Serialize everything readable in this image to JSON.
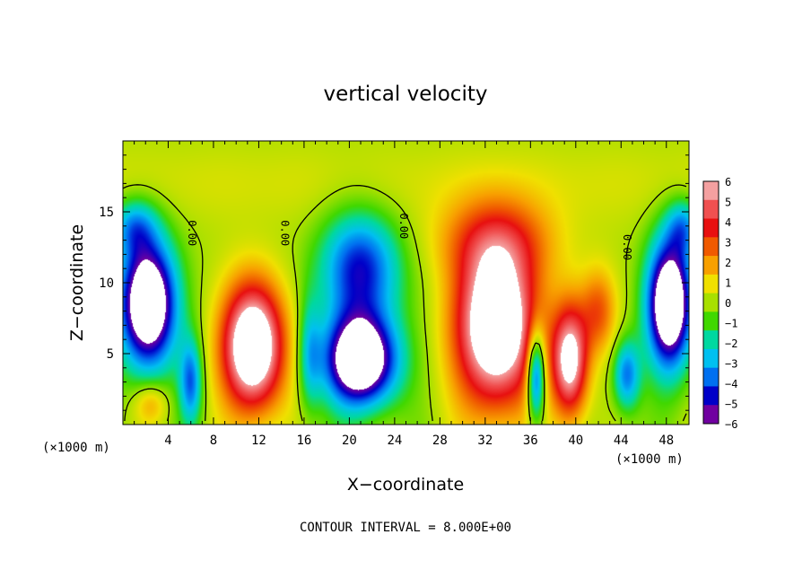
{
  "chart_data": {
    "type": "heatmap",
    "title": "vertical velocity",
    "xlabel": "X−coordinate",
    "ylabel": "Z−coordinate",
    "x_unit": "(×1000 m)",
    "xlim": [
      0,
      50
    ],
    "ylim": [
      0,
      20
    ],
    "xticks": [
      4,
      8,
      12,
      16,
      20,
      24,
      28,
      32,
      36,
      40,
      44,
      48
    ],
    "yticks": [
      5,
      10,
      15
    ],
    "colorbar": {
      "range": [
        -6,
        6
      ],
      "ticks": [
        "6",
        "5",
        "4",
        "3",
        "2",
        "1",
        "0",
        "−1",
        "−2",
        "−3",
        "−4",
        "−5",
        "−6"
      ],
      "colors": [
        "#f4a0a0",
        "#f05050",
        "#e81010",
        "#f05a00",
        "#f8a000",
        "#f0e000",
        "#a8e000",
        "#40d800",
        "#00d8a0",
        "#00c0f0",
        "#0070f0",
        "#0000c8",
        "#7000a0"
      ]
    },
    "zero_contour_label": "0.00",
    "contour_interval_text": "CONTOUR INTERVAL = 8.000E+00",
    "features": [
      {
        "kind": "updraft",
        "x": 11.5,
        "z": 5.5,
        "sx": 2.7,
        "sz": 4.5,
        "w": 9
      },
      {
        "kind": "updraft",
        "x": 33.0,
        "z": 7.0,
        "sx": 3.6,
        "sz": 5.8,
        "w": 9
      },
      {
        "kind": "updraft",
        "x": 39.5,
        "z": 4.5,
        "sx": 1.6,
        "sz": 4.0,
        "w": 7
      },
      {
        "kind": "updraft",
        "x": 42.0,
        "z": 8.0,
        "sx": 1.6,
        "sz": 3.0,
        "w": 3
      },
      {
        "kind": "updraft",
        "x": 33.0,
        "z": 13.0,
        "sx": 5.5,
        "sz": 3.0,
        "w": 2.5
      },
      {
        "kind": "updraft",
        "x": 2.5,
        "z": 1.5,
        "sx": 1.5,
        "sz": 1.5,
        "w": 2
      },
      {
        "kind": "downdraft",
        "x": 2.2,
        "z": 8.5,
        "sx": 2.5,
        "sz": 4.5,
        "w": -9
      },
      {
        "kind": "downdraft",
        "x": 48.3,
        "z": 8.5,
        "sx": 2.0,
        "sz": 4.5,
        "w": -9
      },
      {
        "kind": "downdraft",
        "x": 21.0,
        "z": 4.5,
        "sx": 3.2,
        "sz": 3.2,
        "w": -9
      },
      {
        "kind": "downdraft",
        "x": 21.0,
        "z": 11.0,
        "sx": 3.5,
        "sz": 4.0,
        "w": -5
      },
      {
        "kind": "downdraft",
        "x": 36.5,
        "z": 3.5,
        "sx": 0.8,
        "sz": 3.2,
        "w": -6
      },
      {
        "kind": "downdraft",
        "x": 16.5,
        "z": 5.0,
        "sx": 1.0,
        "sz": 4.0,
        "w": -2.5
      },
      {
        "kind": "downdraft",
        "x": 6.0,
        "z": 3.0,
        "sx": 1.0,
        "sz": 3.0,
        "w": -4
      },
      {
        "kind": "downdraft",
        "x": 44.5,
        "z": 3.5,
        "sx": 1.2,
        "sz": 2.5,
        "w": -4
      },
      {
        "kind": "downdraft",
        "x": 1.0,
        "z": 14.0,
        "sx": 2.0,
        "sz": 2.0,
        "w": -3
      },
      {
        "kind": "downdraft",
        "x": 49.5,
        "z": 14.0,
        "sx": 1.5,
        "sz": 2.0,
        "w": -3
      }
    ]
  }
}
